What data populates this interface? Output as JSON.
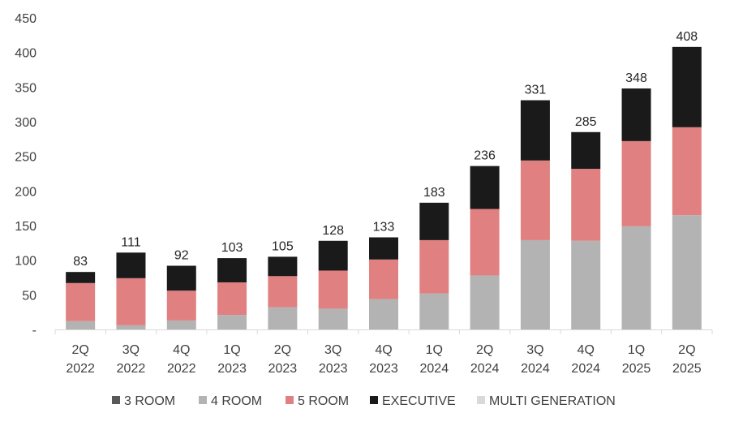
{
  "chart_data": {
    "type": "bar",
    "stacked": true,
    "title": "",
    "xlabel": "",
    "ylabel": "",
    "ylim": [
      0,
      450
    ],
    "yticks": [
      0,
      50,
      100,
      150,
      200,
      250,
      300,
      350,
      400,
      450
    ],
    "ytick_labels": [
      "-",
      "50",
      "100",
      "150",
      "200",
      "250",
      "300",
      "350",
      "400",
      "450"
    ],
    "grid": false,
    "legend_position": "bottom",
    "categories": [
      [
        "2Q",
        "2022"
      ],
      [
        "3Q",
        "2022"
      ],
      [
        "4Q",
        "2022"
      ],
      [
        "1Q",
        "2023"
      ],
      [
        "2Q",
        "2023"
      ],
      [
        "3Q",
        "2023"
      ],
      [
        "4Q",
        "2023"
      ],
      [
        "1Q",
        "2024"
      ],
      [
        "2Q",
        "2024"
      ],
      [
        "3Q",
        "2024"
      ],
      [
        "4Q",
        "2024"
      ],
      [
        "1Q",
        "2025"
      ],
      [
        "2Q",
        "2025"
      ]
    ],
    "series": [
      {
        "name": "3 ROOM",
        "color": "#595959",
        "values": [
          0,
          0,
          0,
          0,
          0,
          0,
          0,
          0,
          0,
          0,
          0,
          0,
          0
        ]
      },
      {
        "name": "4 ROOM",
        "color": "#b3b3b3",
        "values": [
          12,
          6,
          13,
          21,
          32,
          30,
          44,
          52,
          78,
          129,
          128,
          149,
          165
        ]
      },
      {
        "name": "5 ROOM",
        "color": "#e08080",
        "values": [
          55,
          68,
          43,
          47,
          45,
          55,
          57,
          77,
          96,
          115,
          104,
          123,
          127
        ]
      },
      {
        "name": "EXECUTIVE",
        "color": "#1a1a1a",
        "values": [
          16,
          37,
          36,
          35,
          28,
          43,
          32,
          54,
          62,
          87,
          53,
          76,
          116
        ]
      },
      {
        "name": "MULTI GENERATION",
        "color": "#d9d9d9",
        "values": [
          0,
          0,
          0,
          0,
          0,
          0,
          0,
          0,
          0,
          0,
          0,
          0,
          0
        ]
      }
    ],
    "totals": [
      83,
      111,
      92,
      103,
      105,
      128,
      133,
      183,
      236,
      331,
      285,
      348,
      408
    ]
  }
}
